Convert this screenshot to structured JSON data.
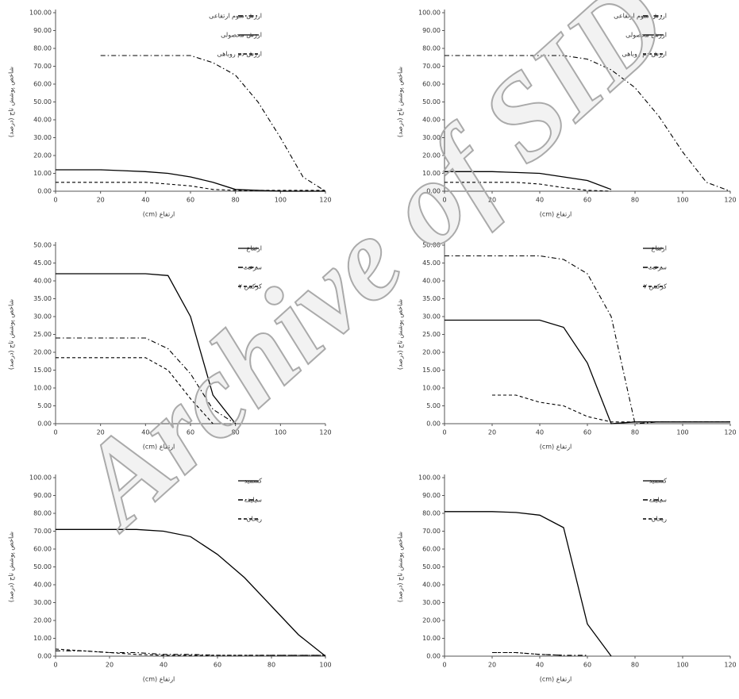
{
  "chart_data": [
    {
      "type": "line",
      "xlabel": "(cm) ارتفاع",
      "ylabel": "شاخص پوشش تاج (درصد)",
      "legend": "upper right",
      "x": [
        0,
        10,
        20,
        30,
        40,
        50,
        60,
        70,
        80,
        90,
        100,
        110,
        120
      ],
      "xlim": [
        0,
        120
      ],
      "xticks": [
        0,
        20,
        40,
        60,
        80,
        100,
        120
      ],
      "ylim": [
        0,
        100
      ],
      "yticks": [
        {
          "value": 0,
          "label": "0.00"
        },
        {
          "value": 10,
          "label": "10.00"
        },
        {
          "value": 20,
          "label": "20.00"
        },
        {
          "value": 30,
          "label": "30.00"
        },
        {
          "value": 40,
          "label": "40.00"
        },
        {
          "value": 50,
          "label": "50.00"
        },
        {
          "value": 60,
          "label": "60.00"
        },
        {
          "value": 70,
          "label": "70.00"
        },
        {
          "value": 80,
          "label": "80.00"
        },
        {
          "value": 90,
          "label": "90.00"
        },
        {
          "value": 100,
          "label": "100.00"
        }
      ],
      "series": [
        {
          "name": "ارزش سوم ارتفاعی",
          "color": "#000000",
          "dash": "dashdot",
          "values": [
            null,
            null,
            76,
            76,
            76,
            76,
            76,
            72,
            65,
            50,
            30,
            8,
            0
          ]
        },
        {
          "name": "ارزش محصولی",
          "color": "#000000",
          "dash": "solid",
          "values": [
            12,
            12,
            12,
            11.5,
            11,
            10,
            8,
            5,
            1,
            0.5,
            0,
            0,
            0
          ]
        },
        {
          "name": "ارزش دم روباهی",
          "color": "#000000",
          "dash": "dashed",
          "values": [
            5,
            5,
            5,
            5,
            5,
            4,
            3,
            1,
            0.5,
            0.5,
            0.5,
            0.5,
            0.5
          ]
        }
      ]
    },
    {
      "type": "line",
      "xlabel": "(cm) ارتفاع",
      "ylabel": "شاخص پوشش تاج (درصد)",
      "legend": "upper right",
      "x": [
        0,
        10,
        20,
        30,
        40,
        50,
        60,
        70,
        80,
        90,
        100,
        110,
        120
      ],
      "xlim": [
        0,
        120
      ],
      "xticks": [
        0,
        20,
        40,
        60,
        80,
        100,
        120
      ],
      "ylim": [
        0,
        100
      ],
      "yticks": [
        {
          "value": 0,
          "label": "0.00"
        },
        {
          "value": 10,
          "label": "10.00"
        },
        {
          "value": 20,
          "label": "20.00"
        },
        {
          "value": 30,
          "label": "30.00"
        },
        {
          "value": 40,
          "label": "40.00"
        },
        {
          "value": 50,
          "label": "50.00"
        },
        {
          "value": 60,
          "label": "60.00"
        },
        {
          "value": 70,
          "label": "70.00"
        },
        {
          "value": 80,
          "label": "80.00"
        },
        {
          "value": 90,
          "label": "90.00"
        },
        {
          "value": 100,
          "label": "100.00"
        }
      ],
      "series": [
        {
          "name": "ارزش سوم ارتفاعی",
          "color": "#000000",
          "dash": "dashdot",
          "values": [
            76,
            76,
            76,
            76,
            76,
            76,
            74,
            68,
            58,
            42,
            22,
            5,
            0
          ]
        },
        {
          "name": "ارزش محصولی",
          "color": "#000000",
          "dash": "solid",
          "values": [
            11,
            11,
            11,
            10.5,
            10,
            8,
            6,
            1,
            null,
            null,
            null,
            null,
            null
          ]
        },
        {
          "name": "ارزش دم روباهی",
          "color": "#000000",
          "dash": "dashed",
          "values": [
            5,
            5,
            5,
            5,
            4,
            2,
            0.5,
            0,
            null,
            null,
            null,
            null,
            null
          ]
        }
      ]
    },
    {
      "type": "line",
      "xlabel": "(cm) ارتفاع",
      "ylabel": "شاخص پوشش تاج (درصد)",
      "legend": "upper right",
      "x": [
        0,
        10,
        20,
        30,
        40,
        50,
        60,
        70,
        80,
        90,
        100,
        110,
        120
      ],
      "xlim": [
        0,
        120
      ],
      "xticks": [
        0,
        20,
        40,
        60,
        80,
        100,
        120
      ],
      "ylim": [
        0,
        50
      ],
      "yticks": [
        {
          "value": 0,
          "label": "0.00"
        },
        {
          "value": 5,
          "label": "5.00"
        },
        {
          "value": 10,
          "label": "10.00"
        },
        {
          "value": 15,
          "label": "15.00"
        },
        {
          "value": 20,
          "label": "20.00"
        },
        {
          "value": 25,
          "label": "25.00"
        },
        {
          "value": 30,
          "label": "30.00"
        },
        {
          "value": 35,
          "label": "35.00"
        },
        {
          "value": 40,
          "label": "40.00"
        },
        {
          "value": 45,
          "label": "45.00"
        },
        {
          "value": 50,
          "label": "50.00"
        }
      ],
      "series": [
        {
          "name": "ارتفاع",
          "color": "#000000",
          "dash": "solid",
          "values": [
            42,
            42,
            42,
            42,
            42,
            41.5,
            30,
            8,
            0,
            null,
            null,
            null,
            null
          ]
        },
        {
          "name": "سرعت",
          "color": "#000000",
          "dash": "dashdot",
          "values": [
            24,
            24,
            24,
            24,
            24,
            21,
            14,
            4,
            0,
            null,
            null,
            null,
            null
          ]
        },
        {
          "name": "کرکس ۲",
          "color": "#000000",
          "dash": "dashed",
          "values": [
            18.5,
            18.5,
            18.5,
            18.5,
            18.5,
            15,
            7,
            0,
            null,
            null,
            null,
            null,
            null
          ]
        }
      ]
    },
    {
      "type": "line",
      "xlabel": "(cm) ارتفاع",
      "ylabel": "شاخص پوشش تاج (درصد)",
      "legend": "upper right",
      "x": [
        0,
        10,
        20,
        30,
        40,
        50,
        60,
        70,
        80,
        90,
        100,
        110,
        120
      ],
      "xlim": [
        0,
        120
      ],
      "xticks": [
        0,
        20,
        40,
        60,
        80,
        100,
        120
      ],
      "ylim": [
        0,
        50
      ],
      "yticks": [
        {
          "value": 0,
          "label": "0.00"
        },
        {
          "value": 5,
          "label": "5.00"
        },
        {
          "value": 10,
          "label": "10.00"
        },
        {
          "value": 15,
          "label": "15.00"
        },
        {
          "value": 20,
          "label": "20.00"
        },
        {
          "value": 25,
          "label": "25.00"
        },
        {
          "value": 30,
          "label": "30.00"
        },
        {
          "value": 35,
          "label": "35.00"
        },
        {
          "value": 40,
          "label": "40.00"
        },
        {
          "value": 45,
          "label": "45.00"
        },
        {
          "value": 50,
          "label": "50.00"
        }
      ],
      "series": [
        {
          "name": "ارتفاع",
          "color": "#000000",
          "dash": "solid",
          "values": [
            29,
            29,
            29,
            29,
            29,
            27,
            17,
            0,
            0.5,
            0.5,
            0.5,
            0.5,
            0.5
          ]
        },
        {
          "name": "سرعت",
          "color": "#000000",
          "dash": "dashdot",
          "values": [
            47,
            47,
            47,
            47,
            47,
            46,
            42,
            30,
            0,
            0.5,
            0.5,
            0.5,
            0.5
          ]
        },
        {
          "name": "کرکس ۲",
          "color": "#000000",
          "dash": "dashed",
          "values": [
            null,
            null,
            8,
            8,
            6,
            5,
            2,
            0.5,
            0.5,
            0.5,
            0.5,
            0.5,
            0.5
          ]
        }
      ]
    },
    {
      "type": "line",
      "xlabel": "(cm) ارتفاع",
      "ylabel": "شاخص پوشش تاج (درصد)",
      "legend": "upper right",
      "x": [
        0,
        10,
        20,
        30,
        40,
        50,
        60,
        70,
        80,
        90,
        100
      ],
      "xlim": [
        0,
        100
      ],
      "xticks": [
        0,
        20,
        40,
        60,
        80,
        100
      ],
      "ylim": [
        0,
        100
      ],
      "yticks": [
        {
          "value": 0,
          "label": "0.00"
        },
        {
          "value": 10,
          "label": "10.00"
        },
        {
          "value": 20,
          "label": "20.00"
        },
        {
          "value": 30,
          "label": "30.00"
        },
        {
          "value": 40,
          "label": "40.00"
        },
        {
          "value": 50,
          "label": "50.00"
        },
        {
          "value": 60,
          "label": "60.00"
        },
        {
          "value": 70,
          "label": "70.00"
        },
        {
          "value": 80,
          "label": "80.00"
        },
        {
          "value": 90,
          "label": "90.00"
        },
        {
          "value": 100,
          "label": "100.00"
        }
      ],
      "series": [
        {
          "name": "کسمید",
          "color": "#000000",
          "dash": "solid",
          "values": [
            71,
            71,
            71,
            71,
            70,
            67,
            57,
            44,
            28,
            12,
            0
          ]
        },
        {
          "name": "سیلیف",
          "color": "#000000",
          "dash": "dashdot",
          "values": [
            3,
            3,
            2,
            2,
            1,
            1,
            0.5,
            0.5,
            0.5,
            0.5,
            0.5
          ]
        },
        {
          "name": "ریحان",
          "color": "#000000",
          "dash": "dashed",
          "values": [
            4,
            3,
            2,
            1,
            0.5,
            0.5,
            0.5,
            0.5,
            0.5,
            0.5,
            0.5
          ]
        }
      ]
    },
    {
      "type": "line",
      "xlabel": "(cm) ارتفاع",
      "ylabel": "شاخص پوشش تاج (درصد)",
      "legend": "upper right",
      "x": [
        0,
        10,
        20,
        30,
        40,
        50,
        60,
        70,
        80,
        90,
        100,
        110,
        120
      ],
      "xlim": [
        0,
        120
      ],
      "xticks": [
        0,
        20,
        40,
        60,
        80,
        100,
        120
      ],
      "ylim": [
        0,
        100
      ],
      "yticks": [
        {
          "value": 0,
          "label": "0.00"
        },
        {
          "value": 10,
          "label": "10.00"
        },
        {
          "value": 20,
          "label": "20.00"
        },
        {
          "value": 30,
          "label": "30.00"
        },
        {
          "value": 40,
          "label": "40.00"
        },
        {
          "value": 50,
          "label": "50.00"
        },
        {
          "value": 60,
          "label": "60.00"
        },
        {
          "value": 70,
          "label": "70.00"
        },
        {
          "value": 80,
          "label": "80.00"
        },
        {
          "value": 90,
          "label": "90.00"
        },
        {
          "value": 100,
          "label": "100.00"
        }
      ],
      "series": [
        {
          "name": "کسمید",
          "color": "#000000",
          "dash": "solid",
          "values": [
            81,
            81,
            81,
            80.5,
            79,
            72,
            18,
            0,
            null,
            null,
            null,
            null,
            null
          ]
        },
        {
          "name": "سیلیف",
          "color": "#000000",
          "dash": "dashdot",
          "values": [
            null,
            null,
            2,
            2,
            1,
            0.5,
            0.5,
            null,
            null,
            null,
            null,
            null,
            null
          ]
        },
        {
          "name": "ریحان",
          "color": "#000000",
          "dash": "dashed",
          "values": [
            null,
            null,
            2,
            2,
            1,
            0.5,
            null,
            null,
            null,
            null,
            null,
            null,
            null
          ]
        }
      ]
    }
  ],
  "watermark": "Archive of SID"
}
